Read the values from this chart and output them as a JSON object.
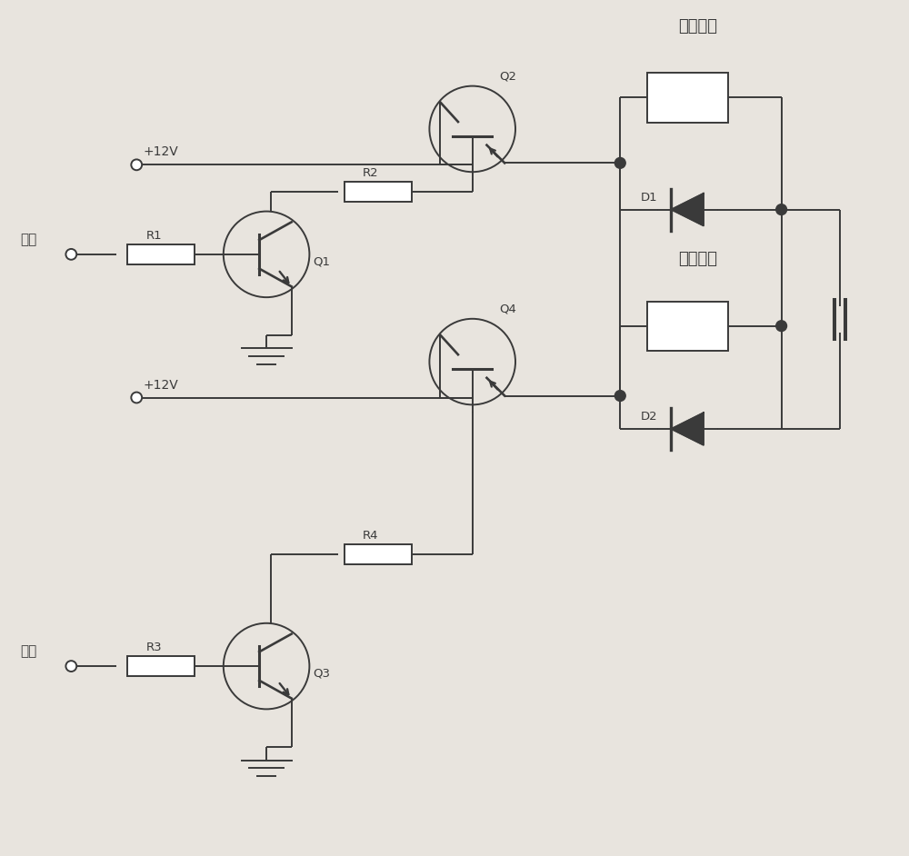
{
  "bg_color": "#e8e4de",
  "line_color": "#3a3a3a",
  "title_top": "合闸线圈",
  "title_mid": "分闸线圈",
  "label_close": "合闸",
  "label_open": "分闸",
  "label_r1": "R1",
  "label_r2": "R2",
  "label_r3": "R3",
  "label_r4": "R4",
  "label_q1": "Q1",
  "label_q2": "Q2",
  "label_q3": "Q3",
  "label_q4": "Q4",
  "label_d1": "D1",
  "label_d2": "D2",
  "label_v12_top": "+12V",
  "label_v12_mid": "+12V"
}
